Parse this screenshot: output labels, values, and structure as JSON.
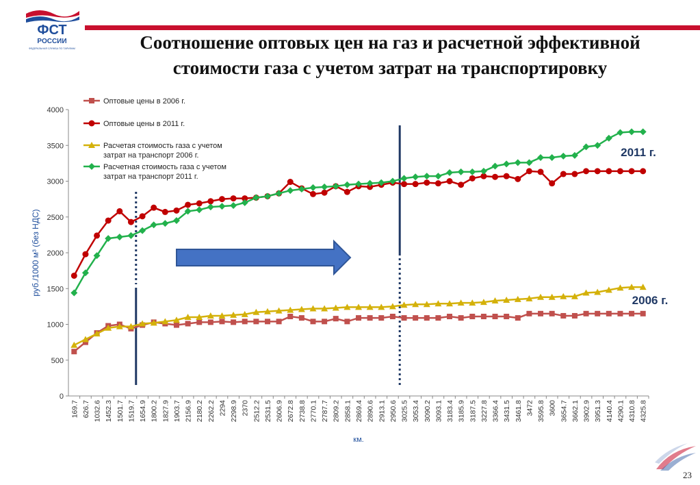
{
  "header": {
    "logo_text": "ФСТ",
    "logo_subtext": "РОССИИ",
    "logo_tagline": "ФЕДЕРАЛЬНАЯ СЛУЖБА ПО ТАРИФАМ",
    "title_line1": "Соотношение оптовых цен на газ и расчетной эффективной",
    "title_line2": "стоимости газа с учетом затрат на транспортировку",
    "brand_color": "#c8102e"
  },
  "page_number": "23",
  "chart_data": {
    "type": "line",
    "xlabel": "км.",
    "ylabel": "руб./1000 м³ (без НДС)",
    "ylim": [
      0,
      4000
    ],
    "yticks": [
      0,
      500,
      1000,
      1500,
      2000,
      2500,
      3000,
      3500,
      4000
    ],
    "grid": false,
    "legend_position": "top-left",
    "categories": [
      "169.7",
      "626.7",
      "1032.6",
      "1452.3",
      "1501.7",
      "1519.7",
      "1654.9",
      "1800.2",
      "1827.9",
      "1903.7",
      "2156.9",
      "2180.2",
      "2262.2",
      "2294",
      "2298.9",
      "2370",
      "2512.2",
      "2531.5",
      "2606.9",
      "2672.8",
      "2738.8",
      "2770.1",
      "2787.7",
      "2809.2",
      "2858.1",
      "2869.4",
      "2890.6",
      "2913.1",
      "2950.6",
      "3025.5",
      "3053.4",
      "3090.2",
      "3093.1",
      "3183.4",
      "3185.9",
      "3187.5",
      "3227.8",
      "3366.4",
      "3431.5",
      "3461.8",
      "3472",
      "3595.8",
      "3600",
      "3654.7",
      "3662.1",
      "3902.9",
      "3951.3",
      "4140.4",
      "4290.1",
      "4310.8",
      "4325.8"
    ],
    "series": [
      {
        "name": "Оптовые цены в 2006 г.",
        "color": "#c0504d",
        "marker": "square",
        "values": [
          620,
          750,
          880,
          980,
          1000,
          940,
          990,
          1030,
          1010,
          990,
          1010,
          1030,
          1030,
          1040,
          1030,
          1040,
          1040,
          1040,
          1040,
          1110,
          1090,
          1040,
          1040,
          1080,
          1040,
          1090,
          1090,
          1090,
          1110,
          1090,
          1090,
          1090,
          1090,
          1110,
          1090,
          1110,
          1110,
          1110,
          1110,
          1090,
          1150,
          1150,
          1150,
          1120,
          1120,
          1150,
          1150,
          1150,
          1150,
          1150,
          1150
        ]
      },
      {
        "name": "Оптовые цены в 2011 г.",
        "color": "#c00000",
        "marker": "circle",
        "values": [
          1680,
          1980,
          2240,
          2450,
          2580,
          2430,
          2510,
          2630,
          2570,
          2590,
          2670,
          2690,
          2720,
          2750,
          2760,
          2760,
          2770,
          2790,
          2830,
          2990,
          2900,
          2820,
          2840,
          2930,
          2850,
          2930,
          2920,
          2950,
          2980,
          2960,
          2960,
          2980,
          2970,
          3000,
          2950,
          3040,
          3070,
          3060,
          3070,
          3030,
          3140,
          3130,
          2970,
          3100,
          3100,
          3140,
          3140,
          3140,
          3140,
          3140,
          3140
        ]
      },
      {
        "name": "Расчетая стоимость газа с учетом затрат на транспорт 2006 г.",
        "color": "#d4b10a",
        "marker": "triangle",
        "values": [
          710,
          790,
          870,
          950,
          970,
          970,
          1010,
          1020,
          1040,
          1060,
          1100,
          1100,
          1120,
          1120,
          1130,
          1140,
          1170,
          1180,
          1190,
          1200,
          1210,
          1220,
          1220,
          1230,
          1240,
          1240,
          1240,
          1240,
          1250,
          1270,
          1280,
          1280,
          1290,
          1290,
          1300,
          1300,
          1310,
          1330,
          1340,
          1350,
          1360,
          1380,
          1380,
          1390,
          1390,
          1440,
          1450,
          1480,
          1510,
          1520,
          1520
        ]
      },
      {
        "name": "Расчетная стоимость газа с учетом затрат на транспорт 2011 г.",
        "color": "#22b14c",
        "marker": "diamond",
        "values": [
          1440,
          1720,
          1960,
          2200,
          2220,
          2240,
          2310,
          2390,
          2410,
          2450,
          2580,
          2600,
          2640,
          2650,
          2660,
          2700,
          2770,
          2790,
          2830,
          2870,
          2890,
          2910,
          2920,
          2930,
          2950,
          2960,
          2970,
          2980,
          3000,
          3040,
          3060,
          3070,
          3070,
          3120,
          3130,
          3130,
          3140,
          3210,
          3240,
          3260,
          3260,
          3330,
          3330,
          3350,
          3360,
          3480,
          3500,
          3600,
          3680,
          3690,
          3690
        ]
      }
    ],
    "annotations": [
      {
        "text": "2011 г.",
        "color": "#1f3864"
      },
      {
        "text": "2006 г.",
        "color": "#1f3864"
      }
    ]
  }
}
